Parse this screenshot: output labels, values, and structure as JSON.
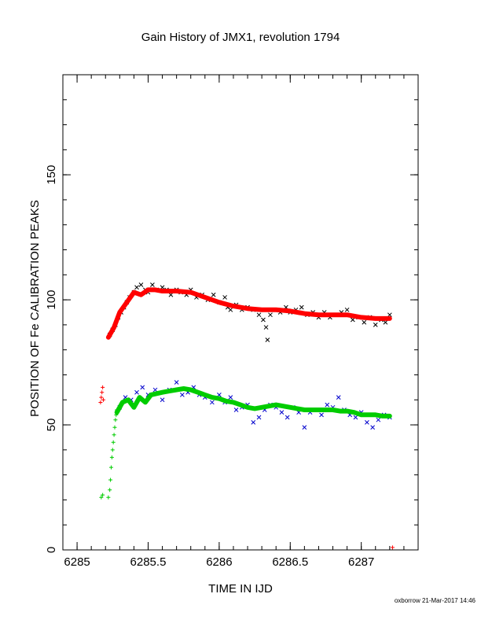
{
  "chart_data": {
    "type": "scatter",
    "title": "Gain History of JMX1, revolution 1794",
    "xlabel": "TIME IN IJD",
    "ylabel": "POSITION OF Fe CALIBRATION PEAKS",
    "xlim": [
      6284.9,
      6287.4
    ],
    "ylim": [
      0,
      190
    ],
    "x_ticks": [
      6285,
      6285.5,
      6286,
      6286.5,
      6287
    ],
    "x_tick_labels": [
      "6285",
      "6285.5",
      "6286",
      "6286.5",
      "6287"
    ],
    "y_ticks": [
      0,
      50,
      100,
      150
    ],
    "y_tick_labels": [
      "0",
      "50",
      "100",
      "150"
    ],
    "grid": false,
    "series": [
      {
        "color": "#000000",
        "marker": "x",
        "points": [
          [
            6285.23,
            86
          ],
          [
            6285.25,
            88
          ],
          [
            6285.27,
            90
          ],
          [
            6285.29,
            93
          ],
          [
            6285.31,
            95
          ],
          [
            6285.33,
            97
          ],
          [
            6285.35,
            99
          ],
          [
            6285.37,
            101
          ],
          [
            6285.4,
            103
          ],
          [
            6285.42,
            105
          ],
          [
            6285.45,
            106
          ],
          [
            6285.48,
            104
          ],
          [
            6285.5,
            103
          ],
          [
            6285.53,
            106
          ],
          [
            6285.56,
            104
          ],
          [
            6285.6,
            105
          ],
          [
            6285.63,
            104
          ],
          [
            6285.66,
            102
          ],
          [
            6285.7,
            104
          ],
          [
            6285.73,
            103
          ],
          [
            6285.77,
            102
          ],
          [
            6285.8,
            104
          ],
          [
            6285.84,
            101
          ],
          [
            6285.88,
            102
          ],
          [
            6285.92,
            100
          ],
          [
            6285.96,
            102
          ],
          [
            6286.0,
            99
          ],
          [
            6286.04,
            101
          ],
          [
            6286.06,
            97
          ],
          [
            6286.08,
            96
          ],
          [
            6286.12,
            98
          ],
          [
            6286.16,
            96
          ],
          [
            6286.2,
            97
          ],
          [
            6286.24,
            96
          ],
          [
            6286.28,
            94
          ],
          [
            6286.31,
            92
          ],
          [
            6286.33,
            89
          ],
          [
            6286.34,
            84
          ],
          [
            6286.36,
            94
          ],
          [
            6286.39,
            96
          ],
          [
            6286.43,
            95
          ],
          [
            6286.47,
            97
          ],
          [
            6286.5,
            95
          ],
          [
            6286.54,
            96
          ],
          [
            6286.58,
            97
          ],
          [
            6286.62,
            94
          ],
          [
            6286.66,
            95
          ],
          [
            6286.7,
            93
          ],
          [
            6286.74,
            95
          ],
          [
            6286.78,
            93
          ],
          [
            6286.82,
            94
          ],
          [
            6286.86,
            95
          ],
          [
            6286.9,
            96
          ],
          [
            6286.94,
            92
          ],
          [
            6286.98,
            93
          ],
          [
            6287.02,
            91
          ],
          [
            6287.06,
            93
          ],
          [
            6287.1,
            90
          ],
          [
            6287.14,
            92
          ],
          [
            6287.17,
            91
          ],
          [
            6287.2,
            94
          ]
        ]
      },
      {
        "color": "#ff0000",
        "marker": "+",
        "points": [
          [
            6285.165,
            59
          ],
          [
            6285.17,
            61
          ],
          [
            6285.175,
            63
          ],
          [
            6285.18,
            65
          ],
          [
            6285.185,
            60
          ],
          [
            6287.22,
            1
          ]
        ]
      },
      {
        "color": "#ff0000",
        "marker": "line",
        "points": [
          [
            6285.22,
            85
          ],
          [
            6285.26,
            89
          ],
          [
            6285.3,
            95
          ],
          [
            6285.35,
            99
          ],
          [
            6285.4,
            103
          ],
          [
            6285.45,
            102
          ],
          [
            6285.5,
            104
          ],
          [
            6285.55,
            104
          ],
          [
            6285.6,
            103.5
          ],
          [
            6285.7,
            103.5
          ],
          [
            6285.8,
            103
          ],
          [
            6285.9,
            101
          ],
          [
            6286.0,
            99
          ],
          [
            6286.1,
            97.5
          ],
          [
            6286.2,
            96.5
          ],
          [
            6286.3,
            96
          ],
          [
            6286.4,
            96
          ],
          [
            6286.5,
            95.5
          ],
          [
            6286.6,
            94.5
          ],
          [
            6286.7,
            94
          ],
          [
            6286.8,
            94
          ],
          [
            6286.9,
            94
          ],
          [
            6287.0,
            93
          ],
          [
            6287.1,
            92.5
          ],
          [
            6287.2,
            92.5
          ]
        ]
      },
      {
        "color": "#0000cc",
        "marker": "x",
        "points": [
          [
            6285.3,
            57
          ],
          [
            6285.34,
            61
          ],
          [
            6285.38,
            60
          ],
          [
            6285.42,
            63
          ],
          [
            6285.46,
            65
          ],
          [
            6285.5,
            62
          ],
          [
            6285.55,
            64
          ],
          [
            6285.6,
            60
          ],
          [
            6285.65,
            64
          ],
          [
            6285.7,
            67
          ],
          [
            6285.74,
            62
          ],
          [
            6285.78,
            63
          ],
          [
            6285.82,
            65
          ],
          [
            6285.86,
            62
          ],
          [
            6285.9,
            61
          ],
          [
            6285.95,
            59
          ],
          [
            6286.0,
            62
          ],
          [
            6286.04,
            59
          ],
          [
            6286.08,
            61
          ],
          [
            6286.12,
            56
          ],
          [
            6286.16,
            57
          ],
          [
            6286.2,
            58
          ],
          [
            6286.24,
            51
          ],
          [
            6286.28,
            53
          ],
          [
            6286.32,
            56
          ],
          [
            6286.36,
            58
          ],
          [
            6286.4,
            57
          ],
          [
            6286.44,
            55
          ],
          [
            6286.48,
            53
          ],
          [
            6286.52,
            57
          ],
          [
            6286.56,
            55
          ],
          [
            6286.6,
            49
          ],
          [
            6286.64,
            55
          ],
          [
            6286.68,
            56
          ],
          [
            6286.72,
            54
          ],
          [
            6286.76,
            58
          ],
          [
            6286.8,
            57
          ],
          [
            6286.84,
            61
          ],
          [
            6286.88,
            56
          ],
          [
            6286.92,
            54
          ],
          [
            6286.96,
            53
          ],
          [
            6287.0,
            55
          ],
          [
            6287.04,
            51
          ],
          [
            6287.08,
            49
          ],
          [
            6287.12,
            52
          ],
          [
            6287.16,
            54
          ],
          [
            6287.2,
            53
          ]
        ]
      },
      {
        "color": "#00cc00",
        "marker": "+",
        "points": [
          [
            6285.17,
            21
          ],
          [
            6285.18,
            22
          ],
          [
            6285.22,
            21
          ],
          [
            6285.23,
            24
          ],
          [
            6285.235,
            28
          ],
          [
            6285.24,
            33
          ],
          [
            6285.245,
            37
          ],
          [
            6285.25,
            40
          ],
          [
            6285.255,
            43
          ],
          [
            6285.26,
            46
          ],
          [
            6285.265,
            49
          ],
          [
            6285.27,
            52
          ],
          [
            6285.275,
            54
          ],
          [
            6285.28,
            56
          ]
        ]
      },
      {
        "color": "#00cc00",
        "marker": "line",
        "points": [
          [
            6285.28,
            55
          ],
          [
            6285.32,
            59
          ],
          [
            6285.36,
            60
          ],
          [
            6285.4,
            57
          ],
          [
            6285.44,
            61
          ],
          [
            6285.48,
            59
          ],
          [
            6285.52,
            62
          ],
          [
            6285.56,
            62.5
          ],
          [
            6285.6,
            63
          ],
          [
            6285.65,
            63.5
          ],
          [
            6285.7,
            64
          ],
          [
            6285.75,
            64.5
          ],
          [
            6285.8,
            64
          ],
          [
            6285.85,
            63
          ],
          [
            6285.9,
            62
          ],
          [
            6285.95,
            61
          ],
          [
            6286.0,
            60.5
          ],
          [
            6286.05,
            59.5
          ],
          [
            6286.1,
            59
          ],
          [
            6286.15,
            58
          ],
          [
            6286.2,
            57
          ],
          [
            6286.25,
            56.5
          ],
          [
            6286.3,
            57
          ],
          [
            6286.35,
            57.5
          ],
          [
            6286.4,
            58
          ],
          [
            6286.45,
            57.5
          ],
          [
            6286.5,
            57
          ],
          [
            6286.55,
            56.5
          ],
          [
            6286.6,
            56
          ],
          [
            6286.65,
            56
          ],
          [
            6286.7,
            56
          ],
          [
            6286.75,
            56
          ],
          [
            6286.8,
            56
          ],
          [
            6286.85,
            55.5
          ],
          [
            6286.9,
            55.5
          ],
          [
            6286.95,
            55
          ],
          [
            6287.0,
            54
          ],
          [
            6287.05,
            54
          ],
          [
            6287.1,
            54
          ],
          [
            6287.15,
            53.5
          ],
          [
            6287.2,
            53.5
          ]
        ]
      }
    ]
  },
  "footer": "oxborrow 21-Mar-2017 14:46"
}
